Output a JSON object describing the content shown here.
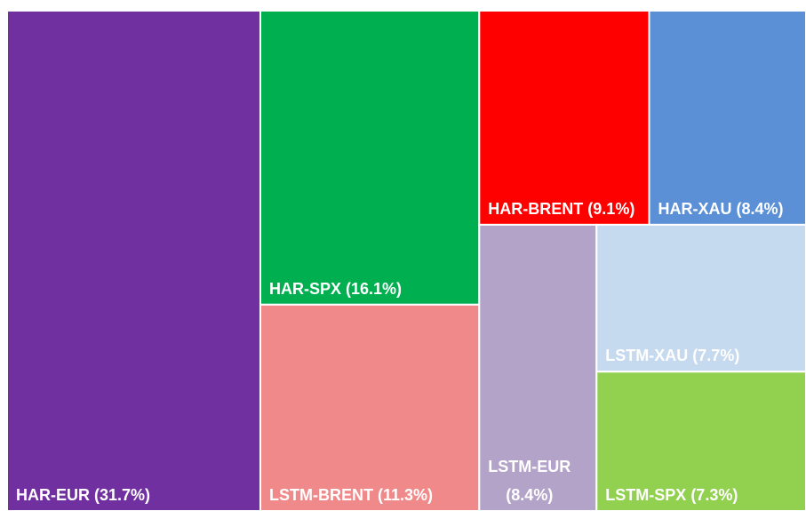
{
  "chart_data": {
    "type": "treemap",
    "categories": [
      "HAR-EUR",
      "HAR-SPX",
      "LSTM-BRENT",
      "HAR-BRENT",
      "HAR-XAU",
      "LSTM-EUR",
      "LSTM-XAU",
      "LSTM-SPX"
    ],
    "values": [
      31.7,
      16.1,
      11.3,
      9.1,
      8.4,
      8.4,
      7.7,
      7.3
    ],
    "value_labels": [
      "(31.7%)",
      "(16.1%)",
      "(11.3%)",
      "(9.1%)",
      "(8.4%)",
      "(8.4%)",
      "(7.7%)",
      "(7.3%)"
    ],
    "colors": [
      "#7030a0",
      "#00b050",
      "#f08a8a",
      "#ff0000",
      "#5b8fd6",
      "#b4a3c8",
      "#c5d9ef",
      "#92d050"
    ]
  }
}
